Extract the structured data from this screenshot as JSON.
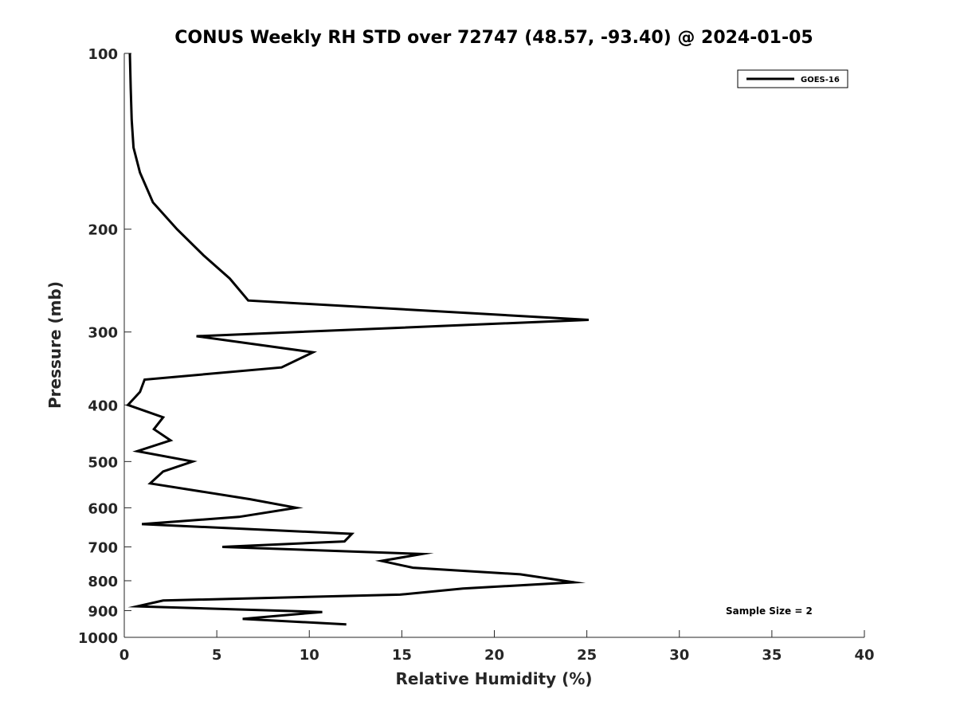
{
  "chart_data": {
    "type": "line",
    "title": "CONUS Weekly RH STD over 72747 (48.57, -93.40) @ 2024-01-05",
    "xlabel": "Relative Humidity (%)",
    "ylabel": "Pressure (mb)",
    "xlim": [
      0,
      40
    ],
    "ylim": [
      100,
      1000
    ],
    "y_scale": "log",
    "y_reversed": true,
    "x_ticks": [
      0,
      5,
      10,
      15,
      20,
      25,
      30,
      35,
      40
    ],
    "y_ticks": [
      100,
      200,
      300,
      400,
      500,
      600,
      700,
      800,
      900,
      1000
    ],
    "grid": false,
    "legend_position": "top-right",
    "annotation": "Sample Size = 2",
    "series": [
      {
        "name": "GOES-16",
        "color": "#000000",
        "points": [
          [
            0.3,
            100
          ],
          [
            0.35,
            115
          ],
          [
            0.4,
            130
          ],
          [
            0.5,
            145
          ],
          [
            0.85,
            160
          ],
          [
            1.55,
            180
          ],
          [
            2.85,
            200
          ],
          [
            4.3,
            222
          ],
          [
            5.7,
            243
          ],
          [
            6.7,
            265
          ],
          [
            25.1,
            286
          ],
          [
            3.9,
            305
          ],
          [
            10.2,
            325
          ],
          [
            8.5,
            345
          ],
          [
            1.1,
            362
          ],
          [
            0.85,
            380
          ],
          [
            0.2,
            400
          ],
          [
            2.1,
            420
          ],
          [
            1.6,
            440
          ],
          [
            2.5,
            460
          ],
          [
            0.7,
            480
          ],
          [
            3.7,
            500
          ],
          [
            2.1,
            520
          ],
          [
            1.4,
            545
          ],
          [
            6.8,
            580
          ],
          [
            9.3,
            600
          ],
          [
            6.2,
            622
          ],
          [
            0.95,
            640
          ],
          [
            12.3,
            665
          ],
          [
            11.9,
            685
          ],
          [
            5.3,
            700
          ],
          [
            16.1,
            720
          ],
          [
            13.9,
            740
          ],
          [
            15.6,
            760
          ],
          [
            21.4,
            780
          ],
          [
            24.3,
            805
          ],
          [
            18.3,
            825
          ],
          [
            14.9,
            845
          ],
          [
            2.1,
            865
          ],
          [
            0.7,
            885
          ],
          [
            10.7,
            905
          ],
          [
            9.4,
            912
          ],
          [
            6.4,
            930
          ],
          [
            12.0,
            950
          ]
        ]
      }
    ]
  }
}
